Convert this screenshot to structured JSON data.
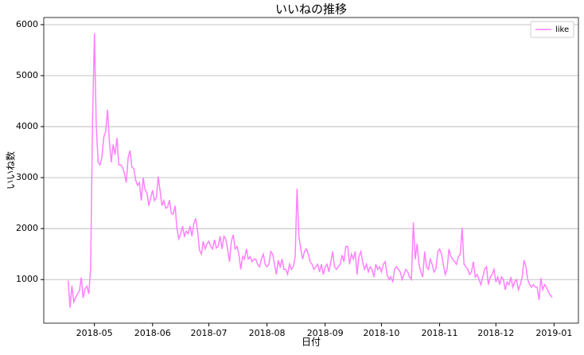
{
  "chart_data": {
    "type": "line",
    "title": "いいねの推移",
    "xlabel": "日付",
    "ylabel": "いいね数",
    "x": [
      "2018-04-17",
      "2018-04-18",
      "2018-04-19",
      "2018-04-20",
      "2018-04-21",
      "2018-04-22",
      "2018-04-23",
      "2018-04-24",
      "2018-04-25",
      "2018-04-26",
      "2018-04-27",
      "2018-04-28",
      "2018-04-29",
      "2018-04-30",
      "2018-05-01",
      "2018-05-02",
      "2018-05-03",
      "2018-05-04",
      "2018-05-05",
      "2018-05-06",
      "2018-05-07",
      "2018-05-08",
      "2018-05-09",
      "2018-05-10",
      "2018-05-11",
      "2018-05-12",
      "2018-05-13",
      "2018-05-14",
      "2018-05-15",
      "2018-05-16",
      "2018-05-17",
      "2018-05-18",
      "2018-05-19",
      "2018-05-20",
      "2018-05-21",
      "2018-05-22",
      "2018-05-23",
      "2018-05-24",
      "2018-05-25",
      "2018-05-26",
      "2018-05-27",
      "2018-05-28",
      "2018-05-29",
      "2018-05-30",
      "2018-05-31",
      "2018-06-01",
      "2018-06-02",
      "2018-06-03",
      "2018-06-04",
      "2018-06-05",
      "2018-06-06",
      "2018-06-07",
      "2018-06-08",
      "2018-06-09",
      "2018-06-10",
      "2018-06-11",
      "2018-06-12",
      "2018-06-13",
      "2018-06-14",
      "2018-06-15",
      "2018-06-16",
      "2018-06-17",
      "2018-06-18",
      "2018-06-19",
      "2018-06-20",
      "2018-06-21",
      "2018-06-22",
      "2018-06-23",
      "2018-06-24",
      "2018-06-25",
      "2018-06-26",
      "2018-06-27",
      "2018-06-28",
      "2018-06-29",
      "2018-06-30",
      "2018-07-01",
      "2018-07-02",
      "2018-07-03",
      "2018-07-04",
      "2018-07-05",
      "2018-07-06",
      "2018-07-07",
      "2018-07-08",
      "2018-07-09",
      "2018-07-10",
      "2018-07-11",
      "2018-07-12",
      "2018-07-13",
      "2018-07-14",
      "2018-07-15",
      "2018-07-16",
      "2018-07-17",
      "2018-07-18",
      "2018-07-19",
      "2018-07-20",
      "2018-07-21",
      "2018-07-22",
      "2018-07-23",
      "2018-07-24",
      "2018-07-25",
      "2018-07-26",
      "2018-07-27",
      "2018-07-28",
      "2018-07-29",
      "2018-07-30",
      "2018-07-31",
      "2018-08-01",
      "2018-08-02",
      "2018-08-03",
      "2018-08-04",
      "2018-08-05",
      "2018-08-06",
      "2018-08-07",
      "2018-08-08",
      "2018-08-09",
      "2018-08-10",
      "2018-08-11",
      "2018-08-12",
      "2018-08-13",
      "2018-08-14",
      "2018-08-15",
      "2018-08-16",
      "2018-08-17",
      "2018-08-18",
      "2018-08-19",
      "2018-08-20",
      "2018-08-21",
      "2018-08-22",
      "2018-08-23",
      "2018-08-24",
      "2018-08-25",
      "2018-08-26",
      "2018-08-27",
      "2018-08-28",
      "2018-08-29",
      "2018-08-30",
      "2018-08-31",
      "2018-09-01",
      "2018-09-02",
      "2018-09-03",
      "2018-09-04",
      "2018-09-05",
      "2018-09-06",
      "2018-09-07",
      "2018-09-08",
      "2018-09-09",
      "2018-09-10",
      "2018-09-11",
      "2018-09-12",
      "2018-09-13",
      "2018-09-14",
      "2018-09-15",
      "2018-09-16",
      "2018-09-17",
      "2018-09-18",
      "2018-09-19",
      "2018-09-20",
      "2018-09-21",
      "2018-09-22",
      "2018-09-23",
      "2018-09-24",
      "2018-09-25",
      "2018-09-26",
      "2018-09-27",
      "2018-09-28",
      "2018-09-29",
      "2018-09-30",
      "2018-10-01",
      "2018-10-02",
      "2018-10-03",
      "2018-10-04",
      "2018-10-05",
      "2018-10-06",
      "2018-10-07",
      "2018-10-08",
      "2018-10-09",
      "2018-10-10",
      "2018-10-11",
      "2018-10-12",
      "2018-10-13",
      "2018-10-14",
      "2018-10-15",
      "2018-10-16",
      "2018-10-17",
      "2018-10-18",
      "2018-10-19",
      "2018-10-20",
      "2018-10-21",
      "2018-10-22",
      "2018-10-23",
      "2018-10-24",
      "2018-10-25",
      "2018-10-26",
      "2018-10-27",
      "2018-10-28",
      "2018-10-29",
      "2018-10-30",
      "2018-10-31",
      "2018-11-01",
      "2018-11-02",
      "2018-11-03",
      "2018-11-04",
      "2018-11-05",
      "2018-11-06",
      "2018-11-07",
      "2018-11-08",
      "2018-11-09",
      "2018-11-10",
      "2018-11-11",
      "2018-11-12",
      "2018-11-13",
      "2018-11-14",
      "2018-11-15",
      "2018-11-16",
      "2018-11-17",
      "2018-11-18",
      "2018-11-19",
      "2018-11-20",
      "2018-11-21",
      "2018-11-22",
      "2018-11-23",
      "2018-11-24",
      "2018-11-25",
      "2018-11-26",
      "2018-11-27",
      "2018-11-28",
      "2018-11-29",
      "2018-11-30",
      "2018-12-01",
      "2018-12-02",
      "2018-12-03",
      "2018-12-04",
      "2018-12-05",
      "2018-12-06",
      "2018-12-07",
      "2018-12-08",
      "2018-12-09",
      "2018-12-10",
      "2018-12-11",
      "2018-12-12",
      "2018-12-13",
      "2018-12-14",
      "2018-12-15",
      "2018-12-16",
      "2018-12-17",
      "2018-12-18",
      "2018-12-19",
      "2018-12-20",
      "2018-12-21",
      "2018-12-22",
      "2018-12-23",
      "2018-12-24",
      "2018-12-25",
      "2018-12-26",
      "2018-12-27",
      "2018-12-28",
      "2018-12-29",
      "2018-12-30",
      "2018-12-31"
    ],
    "series": [
      {
        "name": "like",
        "color": "#ff80ff",
        "values": [
          980,
          450,
          880,
          560,
          650,
          720,
          780,
          1040,
          640,
          820,
          870,
          720,
          1200,
          4100,
          5830,
          4000,
          3300,
          3250,
          3400,
          3800,
          3900,
          4330,
          3700,
          3300,
          3650,
          3450,
          3780,
          3250,
          3250,
          3200,
          3080,
          2900,
          3400,
          3530,
          3200,
          3180,
          2950,
          2850,
          2900,
          2550,
          3000,
          2750,
          2700,
          2450,
          2600,
          2750,
          2550,
          2600,
          3020,
          2750,
          2450,
          2550,
          2400,
          2420,
          2560,
          2300,
          2280,
          2450,
          2000,
          1800,
          1900,
          2050,
          1850,
          1950,
          1900,
          2050,
          1850,
          2100,
          2200,
          1950,
          1580,
          1500,
          1750,
          1600,
          1700,
          1750,
          1650,
          1600,
          1780,
          1620,
          1650,
          1850,
          1600,
          1850,
          1800,
          1600,
          1350,
          1750,
          1880,
          1600,
          1650,
          1500,
          1200,
          1450,
          1400,
          1600,
          1400,
          1450,
          1350,
          1400,
          1400,
          1300,
          1250,
          1400,
          1500,
          1300,
          1250,
          1300,
          1550,
          1500,
          1300,
          1100,
          1380,
          1250,
          1400,
          1200,
          1200,
          1100,
          1300,
          1200,
          1250,
          1450,
          2780,
          1850,
          1600,
          1400,
          1550,
          1600,
          1500,
          1350,
          1300,
          1200,
          1250,
          1300,
          1150,
          1300,
          1100,
          1250,
          1300,
          1150,
          1350,
          1550,
          1250,
          1200,
          1250,
          1300,
          1480,
          1350,
          1650,
          1650,
          1300,
          1500,
          1400,
          1550,
          1100,
          1450,
          1550,
          1350,
          1200,
          1300,
          1150,
          1250,
          1200,
          1050,
          1300,
          1200,
          1250,
          1150,
          1300,
          1350,
          1100,
          1000,
          1050,
          950,
          1200,
          1250,
          1200,
          1150,
          1000,
          1100,
          1200,
          1150,
          1050,
          1000,
          2120,
          1400,
          1700,
          1300,
          1150,
          1050,
          1550,
          1250,
          1200,
          1400,
          1300,
          1150,
          1200,
          1550,
          1600,
          1500,
          1300,
          1100,
          1200,
          1600,
          1450,
          1400,
          1350,
          1300,
          1450,
          1500,
          2020,
          1300,
          1250,
          1200,
          1100,
          1150,
          1350,
          1050,
          1100,
          1000,
          900,
          1050,
          1200,
          1250,
          900,
          1050,
          1100,
          1200,
          950,
          1050,
          900,
          1050,
          1000,
          800,
          950,
          900,
          1050,
          850,
          950,
          1000,
          800,
          900,
          1050,
          1380,
          1250,
          1000,
          900,
          850,
          900,
          850,
          850,
          600,
          1030,
          800,
          900,
          850,
          750,
          700,
          650
        ]
      }
    ],
    "xlim": [
      "2018-04-04",
      "2019-01-14"
    ],
    "xticks": [
      {
        "value": "2018-05-01",
        "label": "2018-05"
      },
      {
        "value": "2018-06-01",
        "label": "2018-06"
      },
      {
        "value": "2018-07-01",
        "label": "2018-07"
      },
      {
        "value": "2018-08-01",
        "label": "2018-08"
      },
      {
        "value": "2018-09-01",
        "label": "2018-09"
      },
      {
        "value": "2018-10-01",
        "label": "2018-10"
      },
      {
        "value": "2018-11-01",
        "label": "2018-11"
      },
      {
        "value": "2018-12-01",
        "label": "2018-12"
      },
      {
        "value": "2019-01-01",
        "label": "2019-01"
      }
    ],
    "ylim": [
      145,
      6140
    ],
    "yticks": [
      1000,
      2000,
      3000,
      4000,
      5000,
      6000
    ],
    "grid": "y",
    "legend": "upper right"
  }
}
